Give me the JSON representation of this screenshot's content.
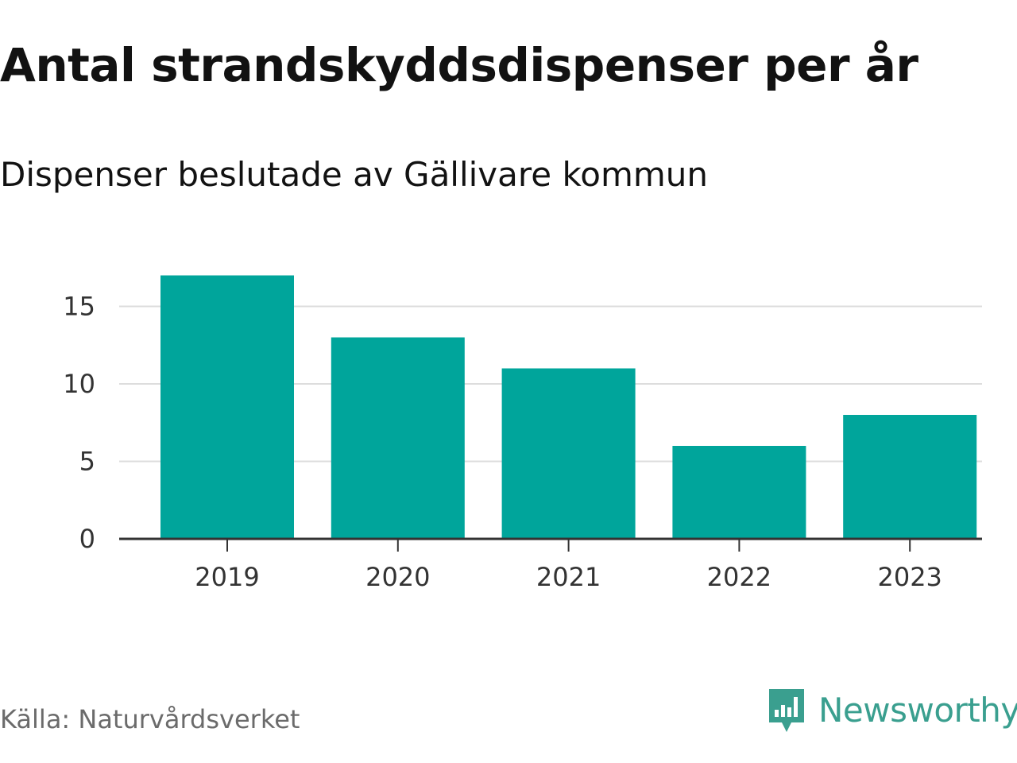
{
  "title": "Antal strandskyddsdispenser per år",
  "subtitle": "Dispenser beslutade av Gällivare kommun",
  "source": "Källa: Naturvårdsverket",
  "brand": {
    "name": "Newsworthy",
    "icon": "newsworthy-logo-icon",
    "color": "#3a9f8f"
  },
  "colors": {
    "bar": "#00a59b",
    "grid": "#dddddd",
    "axis": "#333333"
  },
  "chart_data": {
    "type": "bar",
    "title": "Antal strandskyddsdispenser per år",
    "subtitle": "Dispenser beslutade av Gällivare kommun",
    "categories": [
      "2019",
      "2020",
      "2021",
      "2022",
      "2023"
    ],
    "values": [
      17,
      13,
      11,
      6,
      8
    ],
    "xlabel": "",
    "ylabel": "",
    "ylim": [
      0,
      17
    ],
    "yticks": [
      0,
      5,
      10,
      15
    ],
    "ytick_labels": [
      "0",
      "5",
      "10",
      "15"
    ],
    "grid": true,
    "legend": "none"
  }
}
